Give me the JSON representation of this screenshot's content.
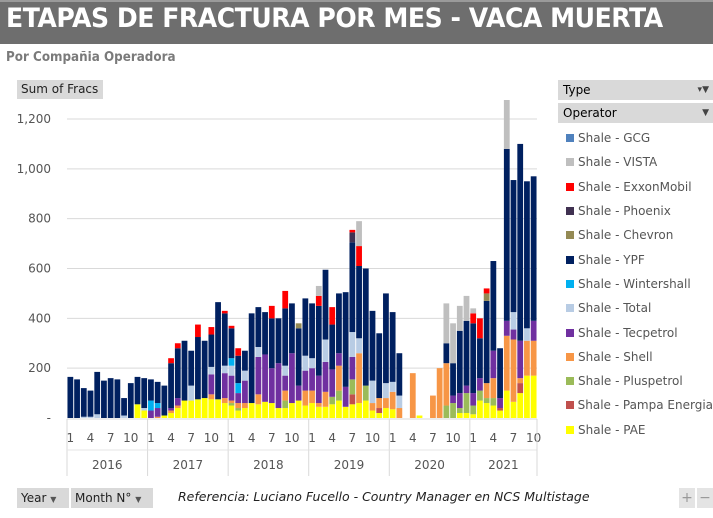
{
  "header": {
    "title": "ETAPAS DE FRACTURA POR MES -  VACA MUERTA",
    "subtitle": "Por Compañia Operadora"
  },
  "field_buttons": {
    "values": "Sum of Fracs",
    "legend_type": "Type",
    "legend_operator": "Operator",
    "axis_year": "Year",
    "axis_month": "Month N°"
  },
  "footer": {
    "reference": "Referencia:  Luciano Fucello - Country Manager en NCS Multistage",
    "zoom_in": "+",
    "zoom_out": "−"
  },
  "chart_data": {
    "type": "bar",
    "stacked": true,
    "title": "ETAPAS DE FRACTURA POR MES - VACA MUERTA",
    "ylabel": "Sum of Fracs",
    "ylim": [
      0,
      1200
    ],
    "yticks": [
      0,
      200,
      400,
      600,
      800,
      1000,
      1200
    ],
    "ytick_labels": [
      "-",
      "200",
      "400",
      "600",
      "800",
      "1,000",
      "1,200"
    ],
    "grid": true,
    "legend_position": "right",
    "years": [
      "2016",
      "2017",
      "2018",
      "2019",
      "2020",
      "2021"
    ],
    "month_tick_labels": [
      "1",
      "4",
      "7",
      "10"
    ],
    "months_per_year": [
      12,
      12,
      12,
      12,
      12,
      10
    ],
    "series": [
      {
        "name": "Shale - PAE",
        "color": "#ffff00",
        "values": [
          0,
          0,
          0,
          0,
          0,
          0,
          0,
          0,
          0,
          0,
          55,
          30,
          0,
          0,
          10,
          20,
          40,
          70,
          70,
          75,
          80,
          75,
          75,
          60,
          50,
          30,
          40,
          60,
          55,
          65,
          60,
          40,
          40,
          60,
          70,
          50,
          60,
          45,
          45,
          55,
          70,
          45,
          55,
          60,
          70,
          30,
          20,
          40,
          35,
          0,
          0,
          0,
          10,
          0,
          0,
          0,
          0,
          0,
          20,
          20,
          15,
          70,
          60,
          50,
          30,
          110,
          65,
          100,
          170,
          170
        ]
      },
      {
        "name": "Shale - Pampa Energia",
        "color": "#c0504d",
        "values": [
          0,
          0,
          0,
          0,
          0,
          0,
          0,
          0,
          0,
          0,
          0,
          0,
          0,
          0,
          0,
          0,
          0,
          0,
          0,
          0,
          0,
          0,
          0,
          0,
          0,
          0,
          0,
          0,
          0,
          0,
          0,
          0,
          0,
          0,
          0,
          0,
          0,
          0,
          0,
          0,
          0,
          0,
          40,
          0,
          0,
          0,
          20,
          0,
          0,
          0,
          0,
          0,
          0,
          0,
          0,
          0,
          0,
          0,
          0,
          0,
          0,
          0,
          0,
          0,
          10,
          0,
          0,
          40,
          0,
          0
        ]
      },
      {
        "name": "Shale - Pluspetrol",
        "color": "#9bbb59",
        "values": [
          0,
          0,
          0,
          0,
          0,
          0,
          0,
          0,
          0,
          0,
          0,
          0,
          0,
          0,
          0,
          0,
          0,
          0,
          0,
          0,
          0,
          0,
          0,
          0,
          10,
          10,
          0,
          0,
          0,
          0,
          0,
          0,
          30,
          0,
          0,
          0,
          0,
          0,
          0,
          30,
          40,
          0,
          60,
          0,
          60,
          0,
          0,
          0,
          0,
          0,
          0,
          0,
          0,
          0,
          0,
          0,
          50,
          60,
          20,
          80,
          35,
          40,
          20,
          30,
          0,
          0,
          0,
          0,
          0,
          0
        ]
      },
      {
        "name": "Shale - Shell",
        "color": "#f79646",
        "values": [
          0,
          0,
          0,
          0,
          0,
          0,
          0,
          0,
          0,
          0,
          0,
          0,
          0,
          5,
          0,
          10,
          10,
          0,
          0,
          0,
          0,
          20,
          0,
          20,
          10,
          20,
          20,
          0,
          40,
          0,
          0,
          0,
          40,
          0,
          0,
          60,
          50,
          15,
          60,
          0,
          100,
          0,
          0,
          200,
          0,
          30,
          40,
          40,
          70,
          40,
          0,
          180,
          0,
          0,
          90,
          200,
          170,
          0,
          0,
          0,
          0,
          0,
          60,
          80,
          0,
          220,
          250,
          20,
          140,
          140
        ]
      },
      {
        "name": "Shale - Tecpetrol",
        "color": "#7030a0",
        "values": [
          0,
          0,
          0,
          0,
          0,
          0,
          0,
          0,
          0,
          0,
          0,
          0,
          30,
          35,
          0,
          10,
          30,
          0,
          0,
          0,
          0,
          80,
          0,
          100,
          100,
          40,
          90,
          0,
          150,
          190,
          140,
          180,
          60,
          200,
          60,
          80,
          90,
          110,
          120,
          110,
          50,
          80,
          90,
          0,
          0,
          0,
          0,
          0,
          0,
          0,
          0,
          0,
          0,
          0,
          0,
          0,
          0,
          30,
          60,
          30,
          50,
          50,
          0,
          110,
          40,
          60,
          40,
          150,
          0,
          80
        ]
      },
      {
        "name": "Shale - Total",
        "color": "#b8cce4",
        "values": [
          0,
          0,
          5,
          5,
          15,
          0,
          0,
          0,
          10,
          0,
          0,
          10,
          0,
          0,
          0,
          0,
          0,
          0,
          60,
          0,
          0,
          30,
          0,
          30,
          40,
          0,
          40,
          0,
          40,
          0,
          0,
          0,
          40,
          0,
          0,
          60,
          40,
          0,
          90,
          0,
          0,
          0,
          100,
          60,
          0,
          90,
          0,
          60,
          40,
          50,
          0,
          0,
          0,
          0,
          0,
          0,
          0,
          0,
          0,
          0,
          0,
          0,
          0,
          0,
          0,
          0,
          70,
          0,
          50,
          0
        ]
      },
      {
        "name": "Shale - Wintershall",
        "color": "#00b0f0",
        "values": [
          0,
          0,
          0,
          0,
          0,
          0,
          0,
          0,
          0,
          0,
          0,
          0,
          40,
          20,
          0,
          0,
          0,
          0,
          0,
          0,
          0,
          0,
          0,
          0,
          30,
          40,
          0,
          0,
          0,
          0,
          0,
          0,
          0,
          0,
          0,
          0,
          0,
          0,
          0,
          0,
          0,
          0,
          0,
          0,
          0,
          0,
          0,
          0,
          0,
          0,
          0,
          0,
          0,
          0,
          0,
          0,
          0,
          0,
          0,
          0,
          0,
          0,
          0,
          0,
          0,
          0,
          0,
          0,
          0,
          0
        ]
      },
      {
        "name": "Shale - YPF",
        "color": "#002060",
        "values": [
          165,
          155,
          115,
          105,
          170,
          150,
          160,
          155,
          70,
          140,
          110,
          120,
          85,
          85,
          120,
          180,
          200,
          240,
          140,
          250,
          230,
          130,
          390,
          210,
          120,
          110,
          80,
          360,
          160,
          170,
          200,
          180,
          230,
          200,
          230,
          230,
          220,
          280,
          280,
          180,
          240,
          380,
          360,
          290,
          470,
          280,
          260,
          360,
          280,
          170,
          0,
          0,
          0,
          0,
          0,
          0,
          80,
          130,
          250,
          260,
          280,
          160,
          330,
          360,
          200,
          690,
          530,
          790,
          590,
          580
        ]
      },
      {
        "name": "Shale - Chevron",
        "color": "#948a54",
        "values": [
          0,
          0,
          0,
          0,
          0,
          0,
          0,
          0,
          0,
          0,
          0,
          0,
          0,
          0,
          0,
          0,
          0,
          0,
          0,
          0,
          0,
          0,
          0,
          0,
          0,
          0,
          0,
          0,
          0,
          0,
          0,
          0,
          0,
          0,
          20,
          0,
          0,
          0,
          0,
          0,
          0,
          0,
          0,
          0,
          0,
          0,
          0,
          0,
          0,
          0,
          0,
          0,
          0,
          0,
          0,
          0,
          0,
          0,
          0,
          0,
          0,
          0,
          30,
          0,
          0,
          0,
          0,
          0,
          0,
          0
        ]
      },
      {
        "name": "Shale - Phoenix",
        "color": "#403151",
        "values": [
          0,
          0,
          0,
          0,
          0,
          0,
          0,
          0,
          0,
          0,
          0,
          0,
          0,
          0,
          0,
          0,
          0,
          0,
          0,
          0,
          0,
          0,
          0,
          0,
          0,
          0,
          0,
          0,
          0,
          0,
          0,
          0,
          0,
          0,
          0,
          0,
          0,
          0,
          0,
          0,
          0,
          0,
          40,
          0,
          0,
          0,
          0,
          0,
          0,
          0,
          0,
          0,
          0,
          0,
          0,
          0,
          0,
          0,
          0,
          0,
          0,
          0,
          0,
          0,
          0,
          0,
          0,
          0,
          0,
          0
        ]
      },
      {
        "name": "Shale - ExxonMobil",
        "color": "#ff0000",
        "values": [
          0,
          0,
          0,
          0,
          0,
          0,
          0,
          0,
          0,
          0,
          0,
          0,
          0,
          0,
          0,
          20,
          20,
          0,
          0,
          50,
          0,
          30,
          0,
          10,
          10,
          30,
          0,
          0,
          0,
          0,
          50,
          0,
          70,
          0,
          0,
          0,
          0,
          40,
          0,
          70,
          0,
          0,
          10,
          80,
          0,
          0,
          0,
          0,
          0,
          0,
          0,
          0,
          0,
          0,
          0,
          0,
          0,
          0,
          0,
          0,
          40,
          80,
          20,
          0,
          0,
          0,
          0,
          0,
          0,
          0
        ]
      },
      {
        "name": "Shale - VISTA",
        "color": "#bfbfbf",
        "values": [
          0,
          0,
          0,
          0,
          0,
          0,
          0,
          0,
          0,
          0,
          0,
          0,
          0,
          0,
          0,
          0,
          0,
          0,
          0,
          0,
          0,
          0,
          0,
          0,
          0,
          0,
          0,
          0,
          0,
          0,
          0,
          0,
          0,
          0,
          0,
          0,
          0,
          40,
          0,
          0,
          0,
          0,
          0,
          100,
          0,
          0,
          0,
          0,
          0,
          0,
          0,
          0,
          0,
          0,
          0,
          0,
          160,
          160,
          100,
          100,
          20,
          0,
          0,
          0,
          0,
          200,
          0,
          0,
          0,
          0
        ]
      },
      {
        "name": "Shale - GCG",
        "color": "#4f81bd",
        "values": [
          0,
          0,
          0,
          0,
          0,
          0,
          0,
          0,
          0,
          0,
          0,
          0,
          0,
          0,
          0,
          0,
          0,
          0,
          0,
          0,
          0,
          0,
          0,
          0,
          0,
          0,
          0,
          0,
          0,
          0,
          0,
          0,
          0,
          0,
          0,
          0,
          0,
          0,
          0,
          0,
          0,
          0,
          0,
          0,
          0,
          0,
          0,
          0,
          0,
          0,
          0,
          0,
          0,
          0,
          0,
          0,
          0,
          0,
          0,
          0,
          0,
          0,
          0,
          0,
          0,
          0,
          0,
          0,
          0,
          0
        ]
      }
    ]
  }
}
